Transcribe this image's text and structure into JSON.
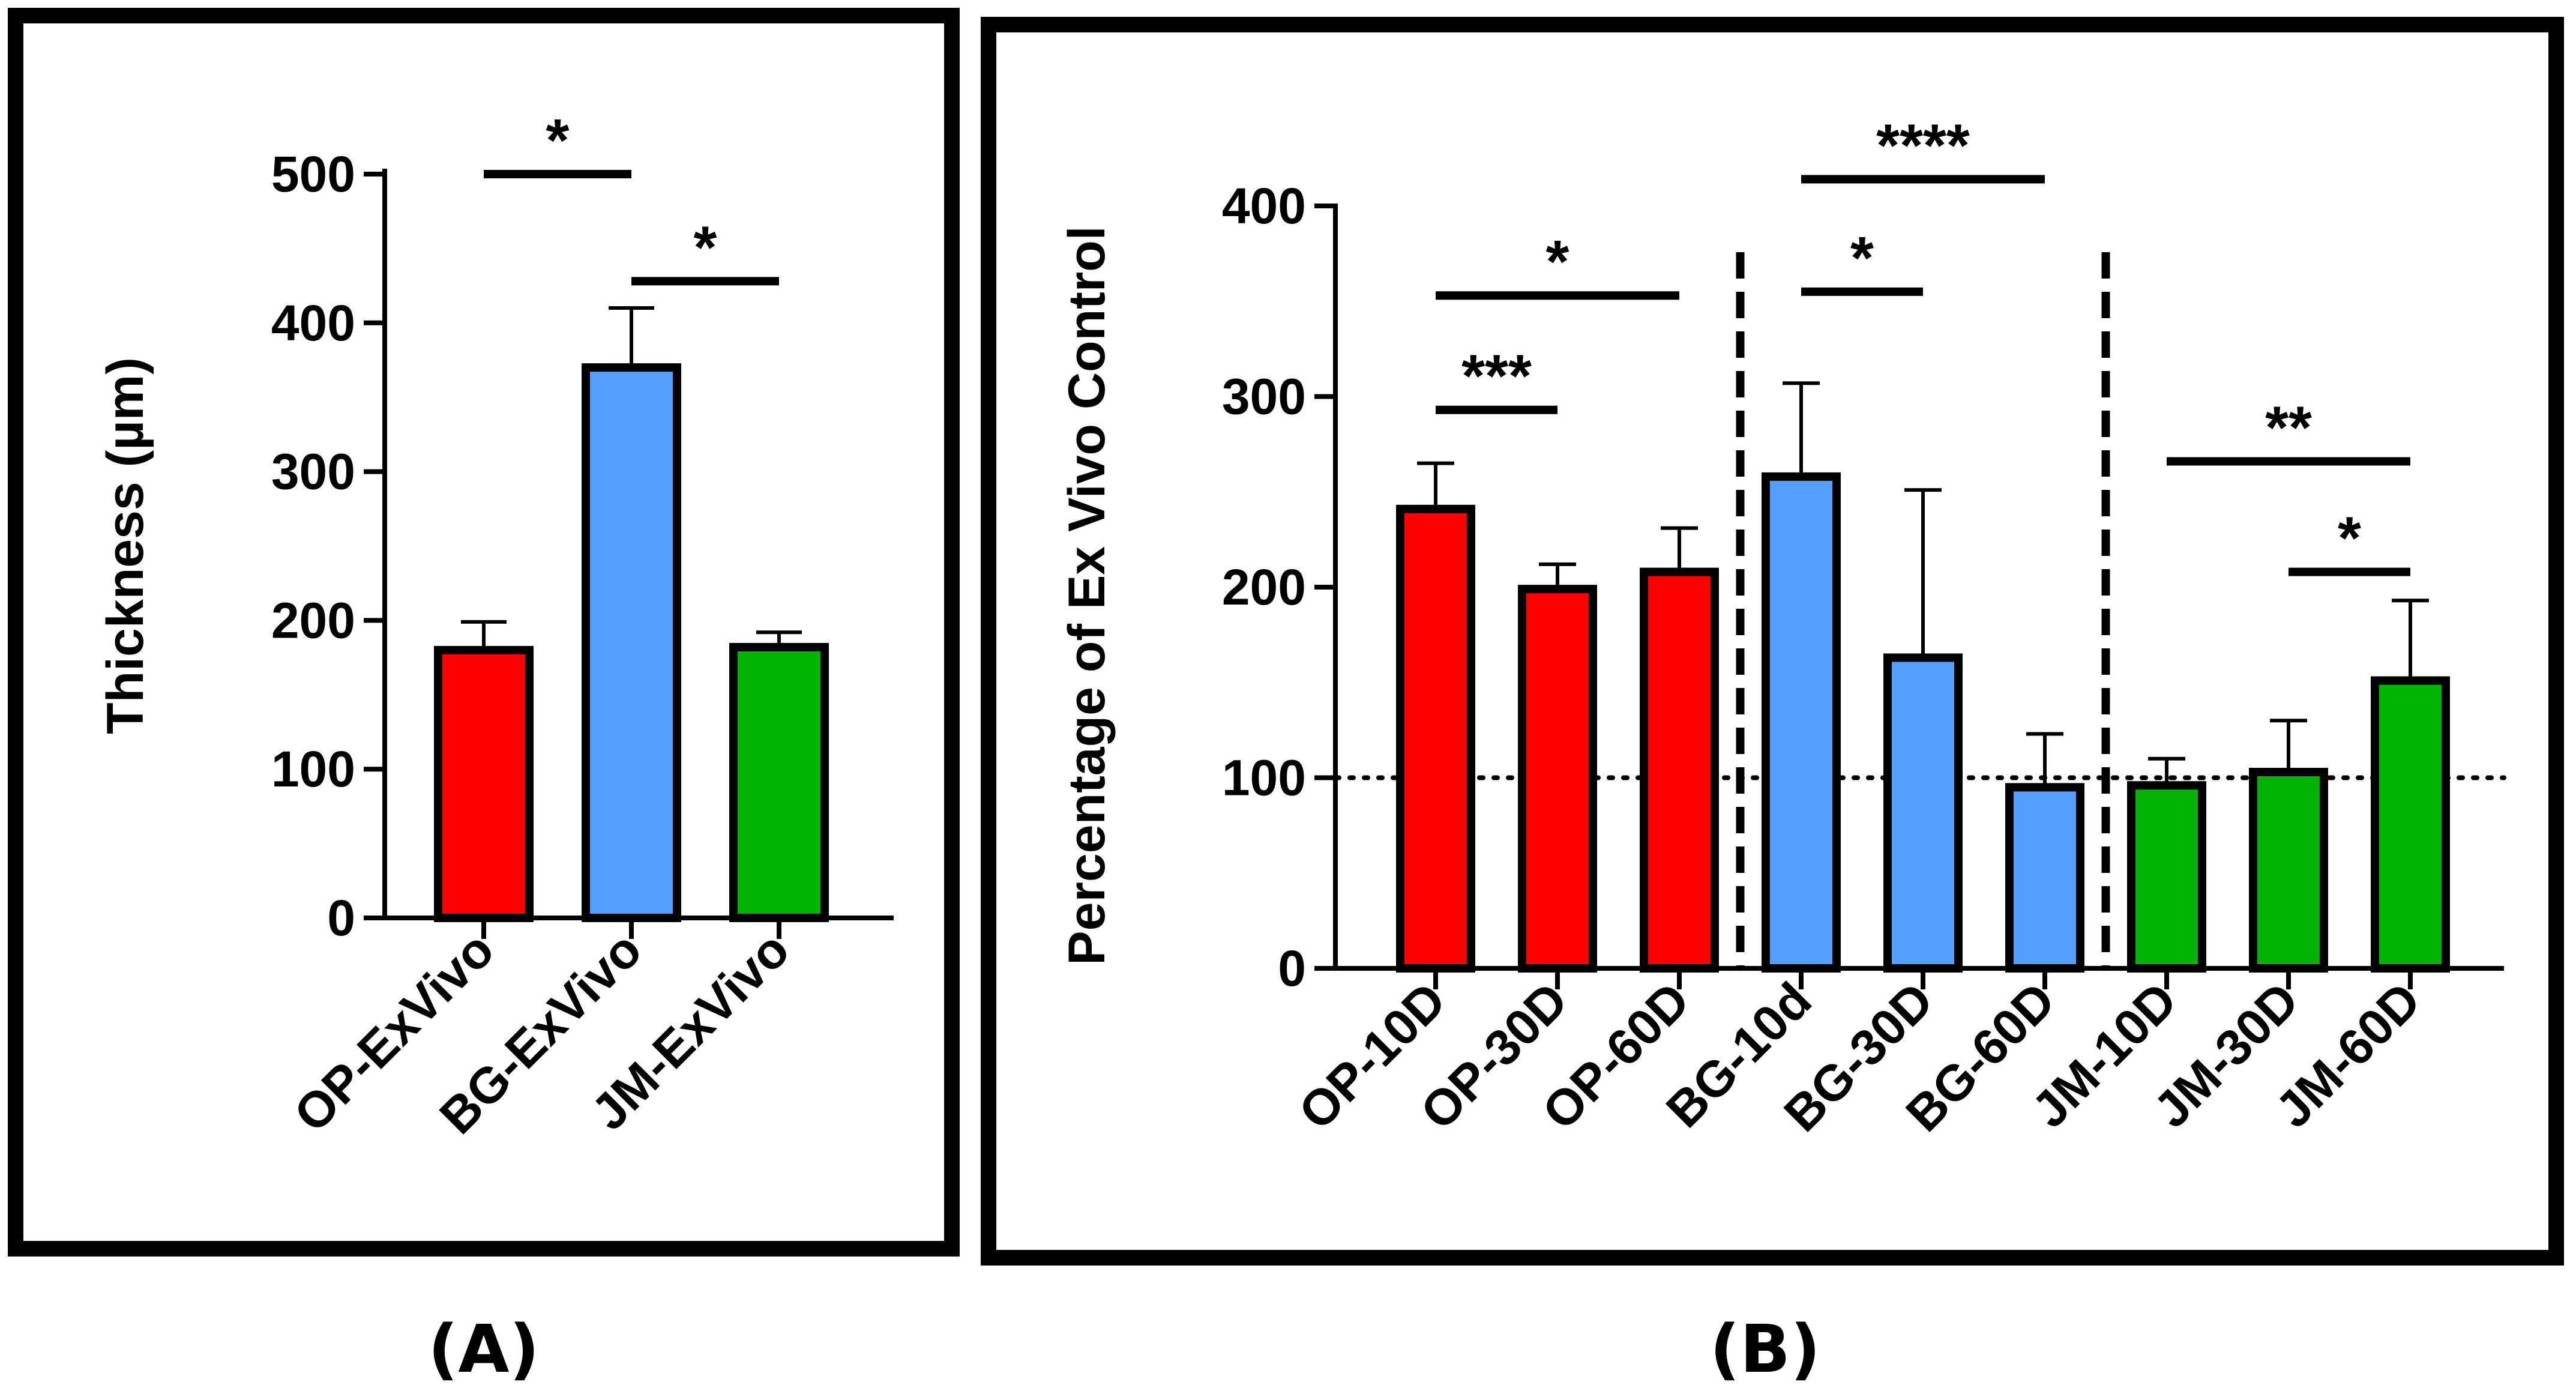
{
  "colors": {
    "op": "#ff0000",
    "bg": "#55a0ff",
    "jm": "#00b300",
    "ink": "#000000",
    "background": "#ffffff"
  },
  "chart_data": [
    {
      "type": "bar",
      "panel_label": "(A)",
      "title": "",
      "xlabel": "",
      "ylabel": "Thickness (µm)",
      "ylim": [
        0,
        500
      ],
      "yticks": [
        0,
        100,
        200,
        300,
        400,
        500
      ],
      "categories": [
        "OP-ExVivo",
        "BG-ExVivo",
        "JM-ExVivo"
      ],
      "values": [
        180,
        370,
        182
      ],
      "errors": [
        19,
        40,
        10
      ],
      "bar_groups": [
        "op",
        "bg",
        "jm"
      ],
      "significance": [
        {
          "from": 0,
          "to": 1,
          "label": "*",
          "y": 500
        },
        {
          "from": 1,
          "to": 2,
          "label": "*",
          "y": 428
        }
      ]
    },
    {
      "type": "bar",
      "panel_label": "(B)",
      "title": "",
      "xlabel": "",
      "ylabel": "Percentage of Ex Vivo Control",
      "ylim": [
        0,
        400
      ],
      "yticks": [
        0,
        100,
        200,
        300,
        400
      ],
      "reference_line": 100,
      "categories": [
        "OP-10D",
        "OP-30D",
        "OP-60D",
        "BG-10d",
        "BG-30D",
        "BG-60D",
        "JM-10D",
        "JM-30D",
        "JM-60D"
      ],
      "values": [
        241,
        199,
        208,
        258,
        163,
        95,
        96,
        103,
        151
      ],
      "errors": [
        24,
        13,
        23,
        49,
        88,
        28,
        14,
        27,
        42
      ],
      "bar_groups": [
        "op",
        "op",
        "op",
        "bg",
        "bg",
        "bg",
        "jm",
        "jm",
        "jm"
      ],
      "group_separators_after": [
        2,
        5
      ],
      "significance": [
        {
          "from": 0,
          "to": 1,
          "label": "***",
          "y": 293
        },
        {
          "from": 0,
          "to": 2,
          "label": "*",
          "y": 353
        },
        {
          "from": 3,
          "to": 4,
          "label": "*",
          "y": 355
        },
        {
          "from": 3,
          "to": 5,
          "label": "****",
          "y": 414
        },
        {
          "from": 6,
          "to": 8,
          "label": "**",
          "y": 266
        },
        {
          "from": 7,
          "to": 8,
          "label": "*",
          "y": 208
        }
      ]
    }
  ]
}
